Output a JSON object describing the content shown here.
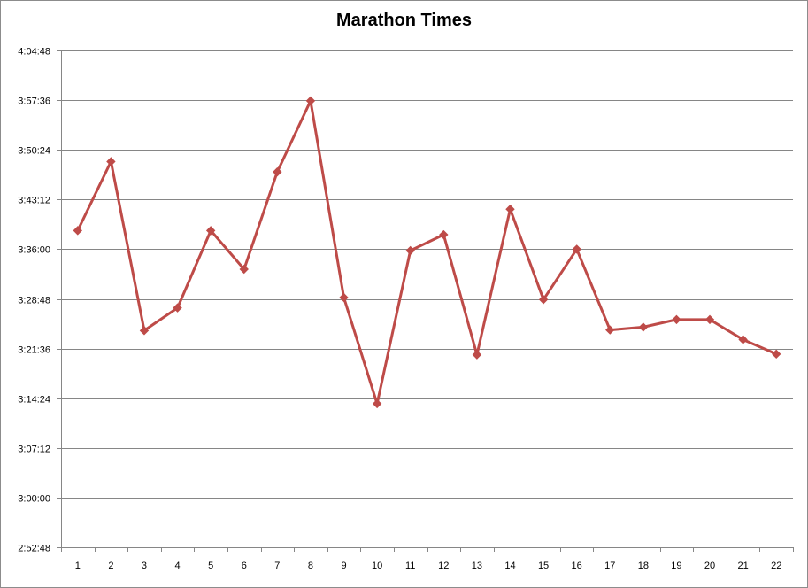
{
  "chart_data": {
    "type": "line",
    "title": "Marathon Times",
    "xlabel": "",
    "ylabel": "",
    "categories": [
      "1",
      "2",
      "3",
      "4",
      "5",
      "6",
      "7",
      "8",
      "9",
      "10",
      "11",
      "12",
      "13",
      "14",
      "15",
      "16",
      "17",
      "18",
      "19",
      "20",
      "21",
      "22"
    ],
    "series": [
      {
        "values": [
          "3:38:42",
          "3:48:42",
          "3:24:12",
          "3:27:30",
          "3:38:42",
          "3:33:06",
          "3:47:12",
          "3:57:30",
          "3:29:00",
          "3:13:36",
          "3:35:48",
          "3:38:06",
          "3:20:42",
          "3:41:48",
          "3:28:42",
          "3:36:00",
          "3:24:18",
          "3:24:42",
          "3:25:48",
          "3:25:48",
          "3:22:54",
          "3:20:48"
        ]
      }
    ],
    "y_ticks": [
      "2:52:48",
      "3:00:00",
      "3:07:12",
      "3:14:24",
      "3:21:36",
      "3:28:48",
      "3:36:00",
      "3:43:12",
      "3:50:24",
      "3:57:36",
      "4:04:48"
    ],
    "ylim": [
      "2:52:48",
      "4:04:48"
    ],
    "grid": true,
    "legend": "none",
    "line_color": "#be4b48"
  }
}
